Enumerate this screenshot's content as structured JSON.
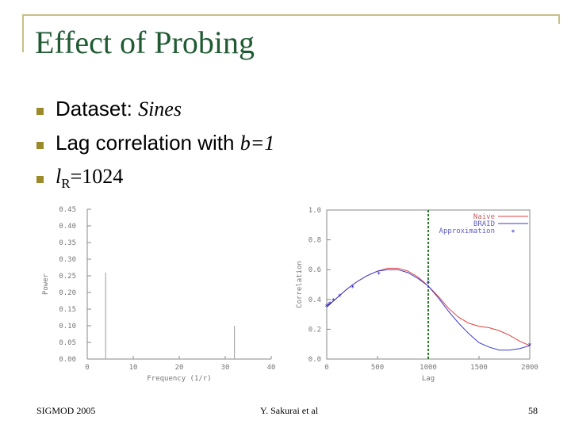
{
  "slide": {
    "title": "Effect of Probing",
    "bullets": [
      {
        "prefix": "Dataset: ",
        "value": "Sines"
      },
      {
        "prefix": "Lag correlation with ",
        "value": "b=1"
      },
      {
        "var": "l",
        "sub": "R",
        "value": "=1024"
      }
    ],
    "footer": {
      "left": "SIGMOD 2005",
      "center": "Y. Sakurai et al",
      "right": "58"
    }
  },
  "colors": {
    "title": "#1f5a33",
    "bullet": "#9b8a2a",
    "frame": "#c7bf86",
    "naive": "#e04040",
    "braid": "#3a3ad0",
    "approx": "#2020c0",
    "marker": "#2a7a2a"
  },
  "chart_data": [
    {
      "type": "bar",
      "xlabel": "Frequency (1/r)",
      "ylabel": "Power",
      "xlim": [
        0,
        40
      ],
      "ylim": [
        0,
        0.45
      ],
      "xticks": [
        "0",
        "10",
        "20",
        "30",
        "40"
      ],
      "yticks": [
        "0.00",
        "0.05",
        "0.10",
        "0.15",
        "0.20",
        "0.25",
        "0.30",
        "0.35",
        "0.40",
        "0.45"
      ],
      "bars": [
        {
          "x": 4,
          "value": 0.26
        },
        {
          "x": 32,
          "value": 0.1
        }
      ]
    },
    {
      "type": "line",
      "xlabel": "Lag",
      "ylabel": "Correlation",
      "xlim": [
        0,
        2000
      ],
      "ylim": [
        0,
        1
      ],
      "xticks": [
        "0",
        "500",
        "1000",
        "1500",
        "2000"
      ],
      "yticks": [
        "0.0",
        "0.2",
        "0.4",
        "0.6",
        "0.8",
        "1.0"
      ],
      "legend": "top-right",
      "vline": 1000,
      "series": [
        {
          "name": "Naive",
          "x": [
            0,
            100,
            200,
            300,
            400,
            500,
            600,
            700,
            800,
            900,
            1000,
            1100,
            1200,
            1300,
            1400,
            1500,
            1600,
            1700,
            1800,
            1900,
            2000
          ],
          "y": [
            0.35,
            0.41,
            0.47,
            0.52,
            0.56,
            0.59,
            0.61,
            0.61,
            0.59,
            0.55,
            0.49,
            0.42,
            0.34,
            0.28,
            0.24,
            0.22,
            0.21,
            0.19,
            0.16,
            0.12,
            0.09
          ]
        },
        {
          "name": "BRAID",
          "x": [
            0,
            100,
            200,
            300,
            400,
            500,
            600,
            700,
            800,
            900,
            1000,
            1100,
            1200,
            1300,
            1400,
            1500,
            1600,
            1700,
            1800,
            1900,
            2000
          ],
          "y": [
            0.35,
            0.41,
            0.47,
            0.52,
            0.56,
            0.59,
            0.6,
            0.6,
            0.58,
            0.54,
            0.49,
            0.41,
            0.32,
            0.24,
            0.17,
            0.11,
            0.08,
            0.06,
            0.06,
            0.07,
            0.09
          ]
        },
        {
          "name": "Approximation",
          "x": [
            0,
            16,
            32,
            64,
            128,
            256,
            512,
            1000,
            2000
          ],
          "y": [
            0.35,
            0.36,
            0.37,
            0.39,
            0.42,
            0.48,
            0.57,
            0.51,
            0.09
          ]
        }
      ]
    }
  ]
}
